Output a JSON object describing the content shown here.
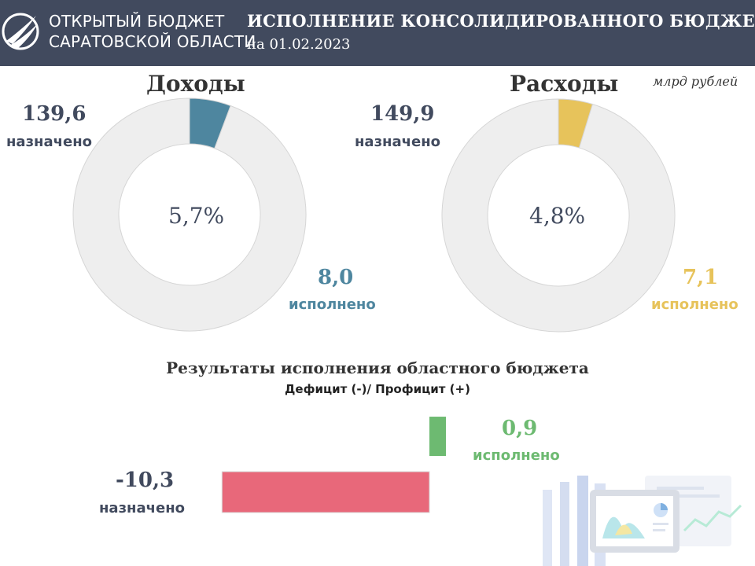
{
  "header": {
    "logo_line1": "ОТКРЫТЫЙ БЮДЖЕТ",
    "logo_line2": "САРАТОВСКОЙ ОБЛАСТИ",
    "title": "ИСПОЛНЕНИЕ КОНСОЛИДИРОВАННОГО БЮДЖЕТА",
    "date": "на 01.02.2023"
  },
  "units": "млрд рублей",
  "colors": {
    "header_bg": "#414a5e",
    "income": "#4e869f",
    "expense": "#e7c35b",
    "remainder": "#eeeeee",
    "surplus": "#6dba71",
    "deficit": "#e8687a"
  },
  "chart_data": [
    {
      "type": "pie",
      "title": "Доходы",
      "planned": 139.6,
      "planned_text": "139,6",
      "planned_label": "назначено",
      "executed": 8.0,
      "executed_text": "8,0",
      "executed_label": "исполнено",
      "percent": 5.7,
      "percent_text": "5,7%"
    },
    {
      "type": "pie",
      "title": "Расходы",
      "planned": 149.9,
      "planned_text": "149,9",
      "planned_label": "назначено",
      "executed": 7.1,
      "executed_text": "7,1",
      "executed_label": "исполнено",
      "percent": 4.8,
      "percent_text": "4,8%"
    },
    {
      "type": "bar",
      "title": "Результаты исполнения  областного бюджета",
      "subtitle": "Дефицит  (-)/ Профицит  (+)",
      "categories": [
        "назначено",
        "исполнено"
      ],
      "values": [
        -10.3,
        0.9
      ],
      "value_texts": [
        "-10,3",
        "0,9"
      ]
    }
  ]
}
